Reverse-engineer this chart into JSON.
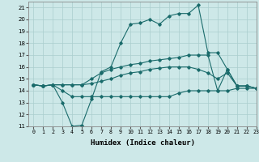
{
  "xlabel": "Humidex (Indice chaleur)",
  "xlim": [
    -0.5,
    23
  ],
  "ylim": [
    11,
    21.5
  ],
  "yticks": [
    11,
    12,
    13,
    14,
    15,
    16,
    17,
    18,
    19,
    20,
    21
  ],
  "xticks": [
    0,
    1,
    2,
    3,
    4,
    5,
    6,
    7,
    8,
    9,
    10,
    11,
    12,
    13,
    14,
    15,
    16,
    17,
    18,
    19,
    20,
    21,
    22,
    23
  ],
  "line_color": "#1a6b6b",
  "bg_color": "#cde8e8",
  "grid_color": "#aacece",
  "lines": [
    {
      "x": [
        0,
        1,
        2,
        3,
        4,
        5,
        6,
        7,
        8,
        9,
        10,
        11,
        12,
        13,
        14,
        15,
        16,
        17,
        18,
        19,
        20,
        21,
        22,
        23
      ],
      "y": [
        14.5,
        14.4,
        14.5,
        13.0,
        11.0,
        11.1,
        13.3,
        15.6,
        16.0,
        18.0,
        19.6,
        19.7,
        20.0,
        19.6,
        20.3,
        20.5,
        20.5,
        21.2,
        17.2,
        17.2,
        15.8,
        14.4,
        14.4,
        14.2
      ]
    },
    {
      "x": [
        0,
        1,
        2,
        3,
        4,
        5,
        6,
        7,
        8,
        9,
        10,
        11,
        12,
        13,
        14,
        15,
        16,
        17,
        18,
        19,
        20,
        21,
        22,
        23
      ],
      "y": [
        14.5,
        14.4,
        14.5,
        14.5,
        14.5,
        14.5,
        15.0,
        15.5,
        15.8,
        16.0,
        16.2,
        16.3,
        16.5,
        16.6,
        16.7,
        16.8,
        17.0,
        17.0,
        17.0,
        14.0,
        15.8,
        14.4,
        14.4,
        14.2
      ]
    },
    {
      "x": [
        0,
        1,
        2,
        3,
        4,
        5,
        6,
        7,
        8,
        9,
        10,
        11,
        12,
        13,
        14,
        15,
        16,
        17,
        18,
        19,
        20,
        21,
        22,
        23
      ],
      "y": [
        14.5,
        14.4,
        14.5,
        14.5,
        14.5,
        14.5,
        14.6,
        14.8,
        15.0,
        15.3,
        15.5,
        15.6,
        15.8,
        15.9,
        16.0,
        16.0,
        16.0,
        15.8,
        15.5,
        15.0,
        15.5,
        14.4,
        14.4,
        14.2
      ]
    },
    {
      "x": [
        0,
        1,
        2,
        3,
        4,
        5,
        6,
        7,
        8,
        9,
        10,
        11,
        12,
        13,
        14,
        15,
        16,
        17,
        18,
        19,
        20,
        21,
        22,
        23
      ],
      "y": [
        14.5,
        14.4,
        14.5,
        14.0,
        13.5,
        13.5,
        13.5,
        13.5,
        13.5,
        13.5,
        13.5,
        13.5,
        13.5,
        13.5,
        13.5,
        13.8,
        14.0,
        14.0,
        14.0,
        14.0,
        14.0,
        14.2,
        14.2,
        14.2
      ]
    }
  ]
}
